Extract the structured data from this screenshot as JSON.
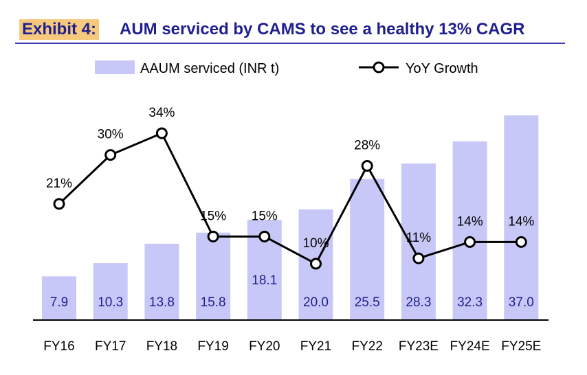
{
  "header": {
    "tag": "Exhibit 4:",
    "title": "AUM serviced by CAMS to see a healthy 13% CAGR"
  },
  "colors": {
    "bar": "#c8c8f8",
    "bar_label": "#1f1f8f",
    "line": "#000000",
    "marker_fill": "#ffffff",
    "title": "#1f1f8f",
    "tag_bg": "#f6c97d"
  },
  "chart_data": {
    "type": "bar",
    "categories": [
      "FY16",
      "FY17",
      "FY18",
      "FY19",
      "FY20",
      "FY21",
      "FY22",
      "FY23E",
      "FY24E",
      "FY25E"
    ],
    "series": [
      {
        "name": "AAUM serviced (INR t)",
        "type": "bar",
        "values": [
          7.9,
          10.3,
          13.8,
          15.8,
          18.1,
          20.0,
          25.5,
          28.3,
          32.3,
          37.0
        ],
        "labels": [
          "7.9",
          "10.3",
          "13.8",
          "15.8",
          "18.1",
          "20.0",
          "25.5",
          "28.3",
          "32.3",
          "37.0"
        ]
      },
      {
        "name": "YoY Growth",
        "type": "line",
        "values": [
          21,
          30,
          34,
          15,
          15,
          10,
          28,
          11,
          14,
          14
        ],
        "labels": [
          "21%",
          "30%",
          "34%",
          "15%",
          "15%",
          "10%",
          "28%",
          "11%",
          "14%",
          "14%"
        ]
      }
    ],
    "legend_position": "top-center",
    "grid": false
  }
}
